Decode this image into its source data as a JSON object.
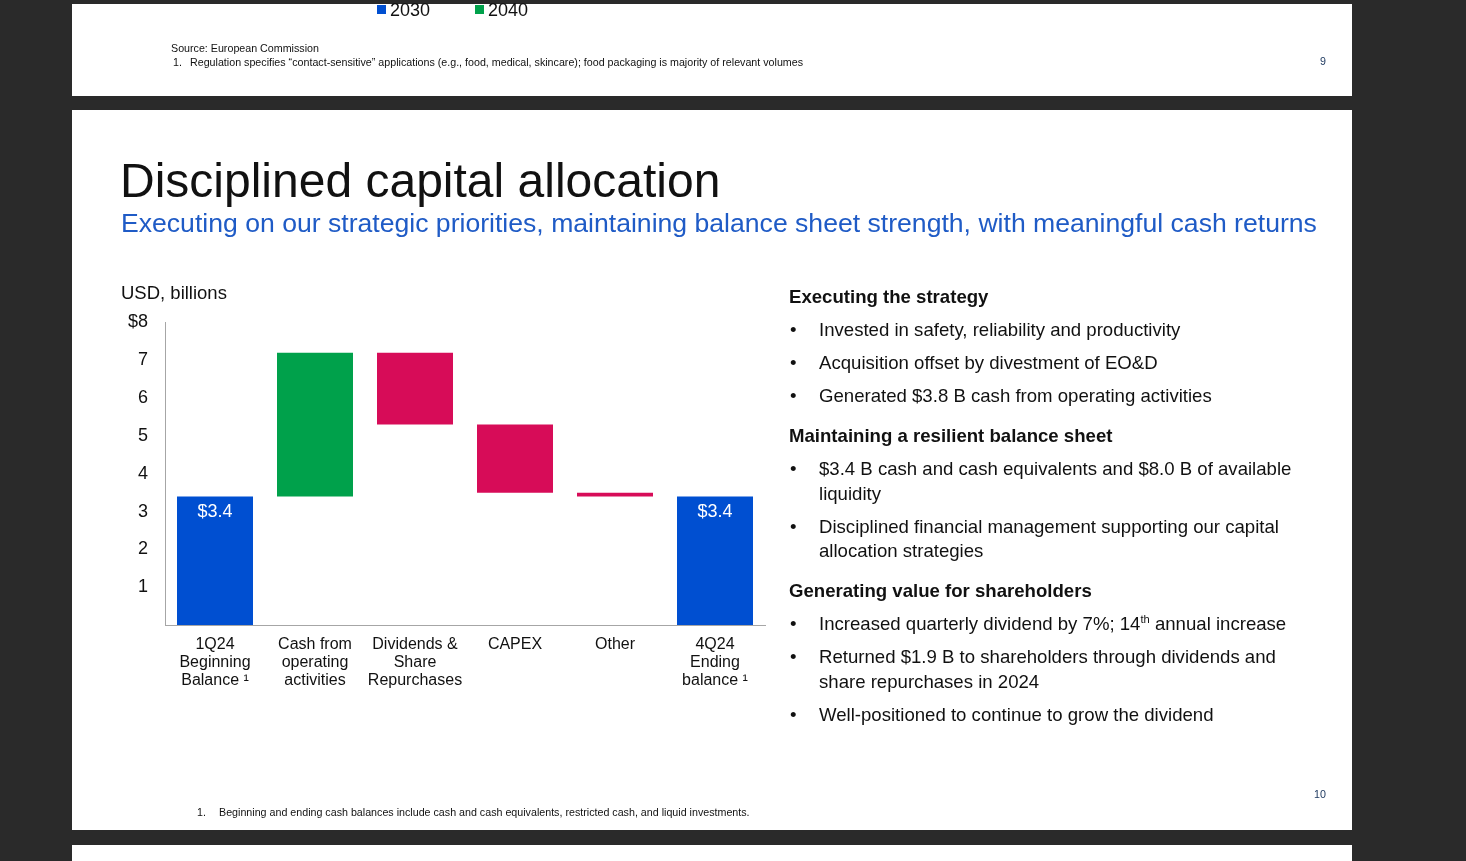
{
  "chart_data": {
    "type": "bar",
    "title": "Disciplined capital allocation",
    "subtitle": "Executing on our strategic priorities, maintaining balance sheet strength, with meaningful cash returns",
    "ylabel": "USD, billions",
    "categories": [
      "1Q24 Beginning Balance ¹",
      "Cash from operating activities",
      "Dividends & Share Repurchases",
      "CAPEX",
      "Other",
      "4Q24 Ending balance ¹"
    ],
    "values": [
      3.4,
      3.8,
      -1.9,
      -1.8,
      -0.1,
      3.4
    ],
    "base": [
      0,
      3.4,
      7.2,
      5.3,
      3.5,
      0
    ],
    "colors": [
      "#004fd1",
      "#00a14b",
      "#d70c58",
      "#d70c58",
      "#d70c58",
      "#004fd1"
    ],
    "value_labels": [
      "$3.4",
      null,
      null,
      null,
      null,
      "$3.4"
    ],
    "ylim": [
      0,
      8
    ],
    "yticks": [
      1,
      2,
      3,
      4,
      5,
      6,
      7,
      {
        "value": 8,
        "label": "$8"
      }
    ],
    "annotations": [
      "2030",
      "2040",
      "Source: European Commission",
      "1. Regulation specifies “contact-sensitive” applications (e.g., food, medical, skincare); food packaging is majority of relevant volumes",
      "9",
      "Executing the strategy",
      "• Invested in safety, reliability and productivity",
      "• Acquisition offset by divestment of EO&D",
      "• Generated $3.8 B cash from operating activities",
      "Maintaining a resilient balance sheet",
      "• $3.4 B cash and cash equivalents and $8.0 B of available liquidity",
      "• Disciplined financial management supporting our capital allocation strategies",
      "Generating value for shareholders",
      "• Increased quarterly dividend by 7%; 14$^{th}$ annual increase",
      "• Returned $1.9 B to shareholders through dividends and share repurchases in 2024",
      "• Well-positioned to continue to grow the dividend",
      "1. Beginning and ending cash balances include cash and cash equivalents, restricted cash, and liquid investments.",
      "10"
    ]
  }
}
